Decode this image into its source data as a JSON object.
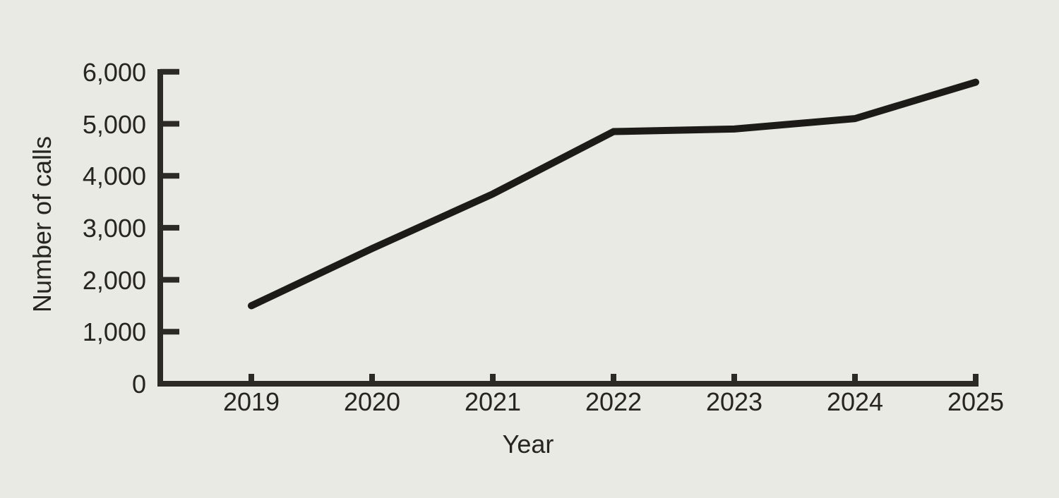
{
  "chart_data": {
    "type": "line",
    "title": "",
    "xlabel": "Year",
    "ylabel": "Number of calls",
    "categories": [
      "2019",
      "2020",
      "2021",
      "2022",
      "2023",
      "2024",
      "2025"
    ],
    "series": [
      {
        "name": "Number of calls",
        "values": [
          1500,
          2600,
          3650,
          4850,
          4900,
          5100,
          5800
        ]
      }
    ],
    "xlim": [
      2019,
      2025
    ],
    "ylim": [
      0,
      6000
    ],
    "yticks": [
      0,
      1000,
      2000,
      3000,
      4000,
      5000,
      6000
    ],
    "ytick_labels": [
      "0",
      "1,000",
      "2,000",
      "3,000",
      "4,000",
      "5,000",
      "6,000"
    ],
    "grid": false,
    "legend": "none"
  },
  "colors": {
    "background": "#e9eae3",
    "ink": "#26251f",
    "axis": "#2b2a25",
    "line": "#1c1b17"
  }
}
